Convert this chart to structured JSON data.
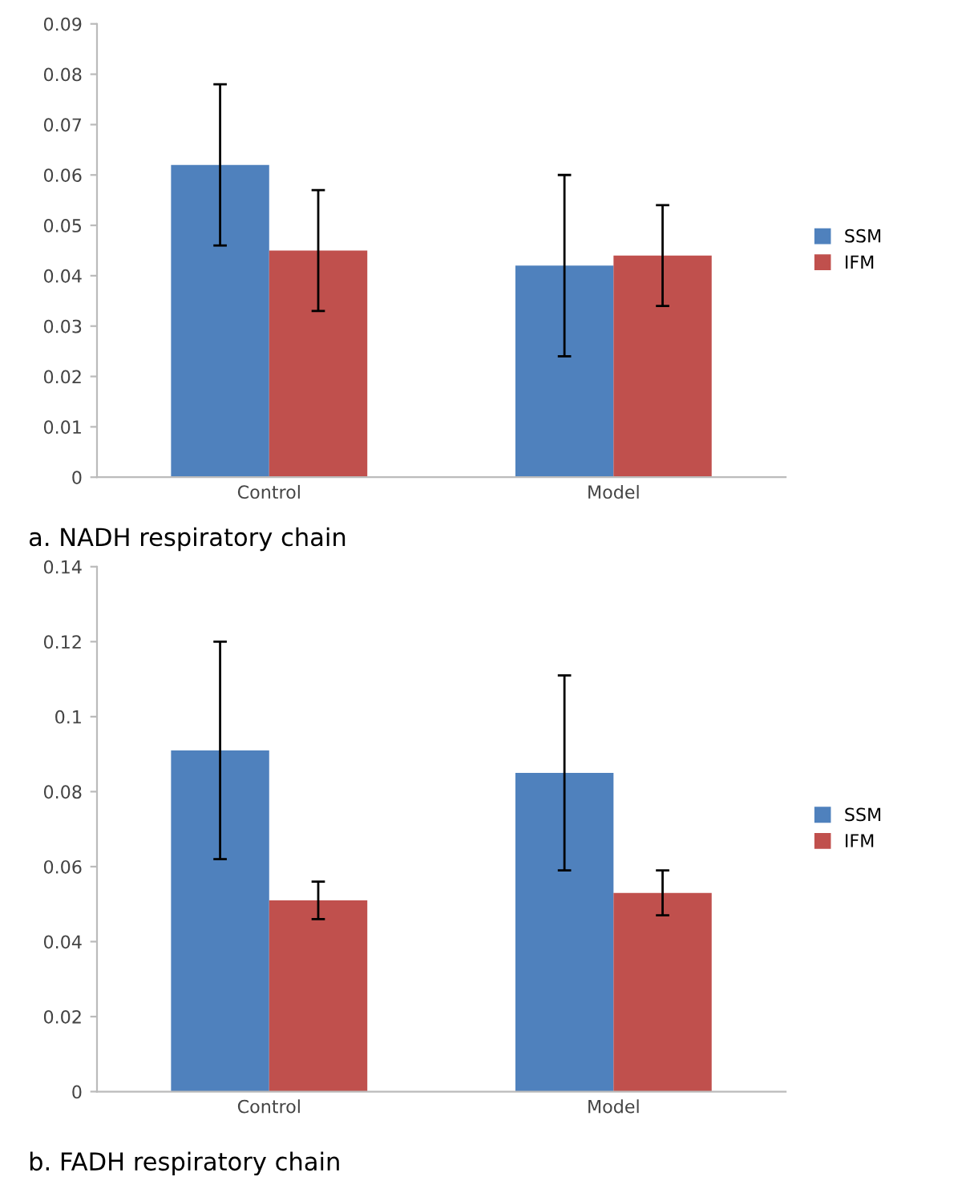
{
  "chart_data": [
    {
      "type": "bar",
      "title": "a. NADH respiratory chain",
      "categories": [
        "Control",
        "Model"
      ],
      "series": [
        {
          "name": "SSM",
          "color": "#4f81bd",
          "values": [
            0.062,
            0.042
          ],
          "errors": [
            0.016,
            0.018
          ]
        },
        {
          "name": "IFM",
          "color": "#c0504d",
          "values": [
            0.045,
            0.044
          ],
          "errors": [
            0.012,
            0.01
          ]
        }
      ],
      "ylim": [
        0,
        0.09
      ],
      "yticks": [
        0,
        0.01,
        0.02,
        0.03,
        0.04,
        0.05,
        0.06,
        0.07,
        0.08,
        0.09
      ],
      "grid": false,
      "legend": "right"
    },
    {
      "type": "bar",
      "title": "b. FADH respiratory chain",
      "categories": [
        "Control",
        "Model"
      ],
      "series": [
        {
          "name": "SSM",
          "color": "#4f81bd",
          "values": [
            0.091,
            0.085
          ],
          "errors": [
            0.029,
            0.026
          ]
        },
        {
          "name": "IFM",
          "color": "#c0504d",
          "values": [
            0.051,
            0.053
          ],
          "errors": [
            0.005,
            0.006
          ]
        }
      ],
      "ylim": [
        0,
        0.14
      ],
      "yticks": [
        0,
        0.02,
        0.04,
        0.06,
        0.08,
        0.1,
        0.12,
        0.14
      ],
      "grid": false,
      "legend": "right"
    }
  ]
}
